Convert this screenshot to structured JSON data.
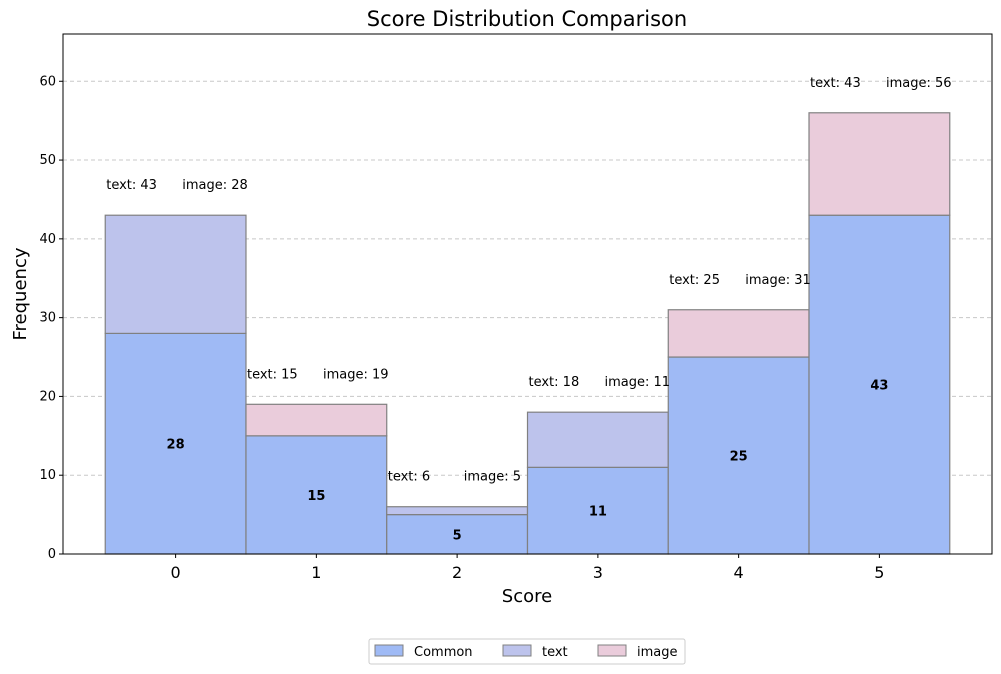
{
  "chart_data": {
    "type": "bar",
    "title": "Score Distribution Comparison",
    "xlabel": "Score",
    "ylabel": "Frequency",
    "categories": [
      "0",
      "1",
      "2",
      "3",
      "4",
      "5"
    ],
    "series": [
      {
        "name": "Common",
        "values": [
          28,
          15,
          5,
          11,
          25,
          43
        ],
        "color": "#9fbaf5"
      },
      {
        "name": "text",
        "values": [
          15,
          0,
          1,
          7,
          0,
          0
        ],
        "color": "#bdc3ec"
      },
      {
        "name": "image",
        "values": [
          0,
          4,
          0,
          0,
          6,
          13
        ],
        "color": "#eaccdb"
      }
    ],
    "text_totals": [
      43,
      15,
      6,
      18,
      25,
      43
    ],
    "image_totals": [
      28,
      19,
      5,
      11,
      31,
      56
    ],
    "annotations": {
      "text_prefix": "text: ",
      "image_prefix": "image: "
    },
    "ylim": [
      0,
      66
    ],
    "yticks": [
      0,
      10,
      20,
      30,
      40,
      50,
      60
    ],
    "grid": "y-dashed",
    "legend_position": "bottom-center",
    "edge_color": "#808080"
  }
}
